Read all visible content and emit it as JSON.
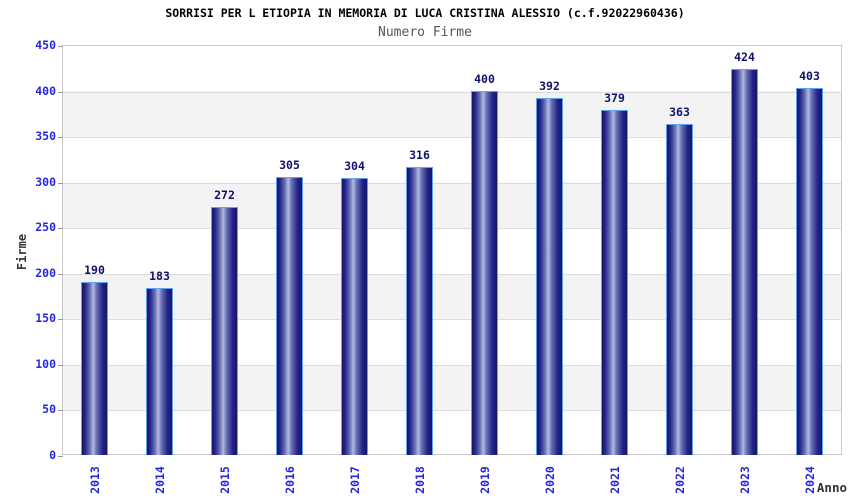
{
  "chart_data": {
    "type": "bar",
    "title": "SORRISI PER L ETIOPIA IN MEMORIA DI LUCA CRISTINA ALESSIO (c.f.92022960436)",
    "subtitle": "Numero Firme",
    "xlabel": "Anno",
    "ylabel": "Firme",
    "categories": [
      "2013",
      "2014",
      "2015",
      "2016",
      "2017",
      "2018",
      "2019",
      "2020",
      "2021",
      "2022",
      "2023",
      "2024"
    ],
    "values": [
      190,
      183,
      272,
      305,
      304,
      316,
      400,
      392,
      379,
      363,
      424,
      403
    ],
    "ylim": [
      0,
      450
    ],
    "ytick_step": 50,
    "grid": "horizontal-bands-alternating",
    "legend": "none",
    "colors": {
      "bar_dark": "#15156b",
      "bar_mid": "#242489",
      "bar_highlight": "#b2bae2",
      "bar_border": "#5ea2f2",
      "axis_tick_text": "#2626e0",
      "value_label": "#10106e",
      "title_text": "#000000",
      "subtitle_text": "#555555",
      "axis_title_text": "#333333",
      "band_gray": "#f3f3f3",
      "gridline": "#dcdcdc",
      "plot_border": "#c9c9c9"
    }
  }
}
